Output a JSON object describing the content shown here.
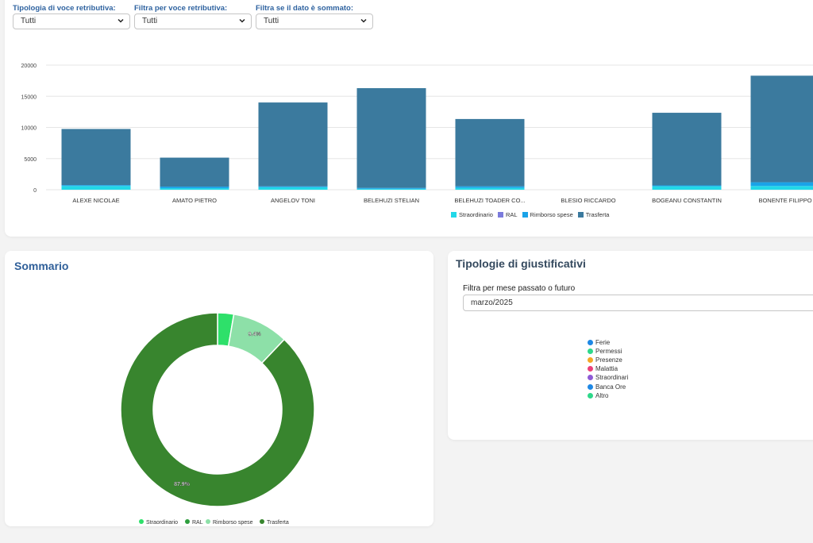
{
  "filters": [
    {
      "label": "Tipologia di voce retributiva:",
      "value": "Tutti"
    },
    {
      "label": "Filtra per voce retributiva:",
      "value": "Tutti"
    },
    {
      "label": "Filtra se il dato è sommato:",
      "value": "Tutti"
    }
  ],
  "chart_data": [
    {
      "type": "bar",
      "stacked": true,
      "categories": [
        "ALEXE NICOLAE",
        "AMATO PIETRO",
        "ANGELOV TONI",
        "BELEHUZI STELIAN",
        "BELEHUZI TOADER CO...",
        "BLESIO RICCARDO",
        "BOGEANU CONSTANTIN",
        "BONENTE FILIPPO"
      ],
      "series": [
        {
          "name": "Straordinario",
          "color": "#22d8e8",
          "values": [
            600,
            250,
            400,
            150,
            300,
            0,
            550,
            600
          ]
        },
        {
          "name": "RAL",
          "color": "#7b7bdc",
          "values": [
            0,
            0,
            0,
            0,
            0,
            0,
            0,
            0
          ]
        },
        {
          "name": "Rimborso spese",
          "color": "#1aa3e8",
          "values": [
            150,
            250,
            150,
            150,
            250,
            0,
            150,
            600
          ]
        },
        {
          "name": "Trasferta",
          "color": "#3b7a9e",
          "values": [
            9000,
            4650,
            13450,
            16000,
            10800,
            0,
            11650,
            17100
          ]
        }
      ],
      "yticks": [
        0,
        5000,
        10000,
        15000,
        20000
      ],
      "ylim": [
        0,
        20000
      ],
      "grid": true,
      "legend": "bottom"
    },
    {
      "type": "pie",
      "donut": true,
      "labels": [
        "Straordinario",
        "RAL",
        "Rimborso spese",
        "Trasferta"
      ],
      "values": [
        2.7,
        0,
        9.4,
        87.9
      ],
      "colors": [
        "#2ee06a",
        "#2e9e3e",
        "#8de0a8",
        "#38852e"
      ],
      "data_labels": [
        "",
        "",
        "9.4%",
        "87.9%"
      ],
      "legend": "bottom"
    }
  ],
  "summary": {
    "title": "Sommario"
  },
  "tipologie": {
    "title": "Tipologie di giustificativi",
    "month_filter_label": "Filtra per mese passato o futuro",
    "month_value": "marzo/2025",
    "legend": [
      {
        "name": "Ferie",
        "color": "#1e88e5"
      },
      {
        "name": "Permessi",
        "color": "#2ed88a"
      },
      {
        "name": "Presenze",
        "color": "#f4a825"
      },
      {
        "name": "Malattia",
        "color": "#ec407a"
      },
      {
        "name": "Straordinari",
        "color": "#8e5bd6"
      },
      {
        "name": "Banca Ore",
        "color": "#1e88e5"
      },
      {
        "name": "Altro",
        "color": "#2ed88a"
      }
    ]
  }
}
